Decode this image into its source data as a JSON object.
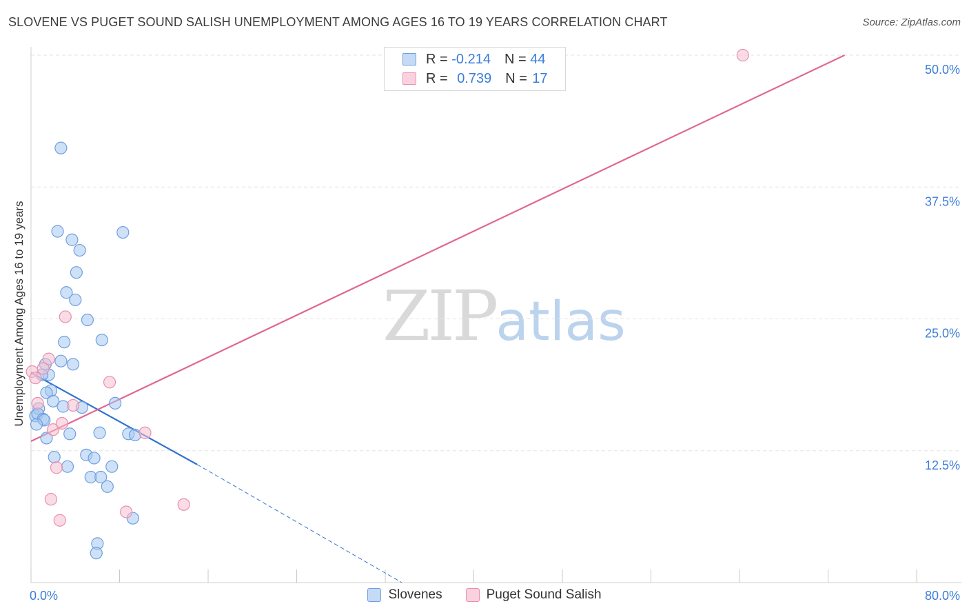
{
  "title": "SLOVENE VS PUGET SOUND SALISH UNEMPLOYMENT AMONG AGES 16 TO 19 YEARS CORRELATION CHART",
  "source": "Source: ZipAtlas.com",
  "watermark": {
    "zip": "ZIP",
    "atlas": "atlas"
  },
  "legend": {
    "r_label": "R =",
    "n_label": "N =",
    "rows": [
      {
        "name": "Slovenes",
        "r": "-0.214",
        "n": "44"
      },
      {
        "name": "Puget Sound Salish",
        "r": "0.739",
        "n": "17"
      }
    ]
  },
  "colors": {
    "slovenes_fill": "#a8c8f0",
    "slovenes_stroke": "#6d9fe0",
    "slovenes_line": "#2f72d0",
    "salish_fill": "#f6bfd0",
    "salish_stroke": "#e890ad",
    "salish_line": "#e0688f",
    "axis_label": "#3b7dd8",
    "grid": "#e3e3e3"
  },
  "chart_data": {
    "type": "scatter",
    "title": "SLOVENE VS PUGET SOUND SALISH UNEMPLOYMENT AMONG AGES 16 TO 19 YEARS CORRELATION CHART",
    "xlabel": "",
    "ylabel": "Unemployment Among Ages 16 to 19 years",
    "xlim": [
      0,
      80
    ],
    "ylim": [
      0,
      50
    ],
    "x_tick_labels": [
      {
        "value": 0,
        "label": "0.0%"
      },
      {
        "value": 80,
        "label": "80.0%"
      }
    ],
    "y_tick_labels": [
      {
        "value": 12.5,
        "label": "12.5%"
      },
      {
        "value": 25,
        "label": "25.0%"
      },
      {
        "value": 37.5,
        "label": "37.5%"
      },
      {
        "value": 50,
        "label": "50.0%"
      }
    ],
    "grid": true,
    "series": [
      {
        "name": "Slovenes",
        "x": [
          2.7,
          2.4,
          3.7,
          8.3,
          4.4,
          4.1,
          3.2,
          4.0,
          5.1,
          6.4,
          3.0,
          2.7,
          1.3,
          3.8,
          1.6,
          1.0,
          0.4,
          1.8,
          1.4,
          2.0,
          0.7,
          0.6,
          1.1,
          1.2,
          0.5,
          4.6,
          7.6,
          1.4,
          8.8,
          2.9,
          3.5,
          6.2,
          9.4,
          5.0,
          2.1,
          3.3,
          5.7,
          7.3,
          5.4,
          6.3,
          6.9,
          9.2,
          6.0,
          5.9
        ],
        "y": [
          41.2,
          33.3,
          32.5,
          33.2,
          31.5,
          29.4,
          27.5,
          26.8,
          24.9,
          23.0,
          22.8,
          21.0,
          20.7,
          20.7,
          19.7,
          19.7,
          15.8,
          18.2,
          18.0,
          17.2,
          16.5,
          16.0,
          15.5,
          15.4,
          15.0,
          16.6,
          17.0,
          13.7,
          14.1,
          16.7,
          14.1,
          14.2,
          14.0,
          12.1,
          11.9,
          11.0,
          11.8,
          11.0,
          10.0,
          10.0,
          9.1,
          6.1,
          3.7,
          2.8
        ]
      },
      {
        "name": "Puget Sound Salish",
        "x": [
          64.3,
          3.1,
          0.1,
          1.6,
          0.4,
          1.1,
          0.6,
          7.1,
          3.8,
          2.0,
          2.3,
          10.3,
          1.8,
          2.8,
          13.8,
          8.6,
          2.6
        ],
        "y": [
          50.0,
          25.2,
          20.0,
          21.2,
          19.4,
          20.3,
          17.0,
          19.0,
          16.8,
          14.5,
          10.9,
          14.2,
          7.9,
          15.1,
          7.4,
          6.7,
          5.9
        ]
      }
    ],
    "trendlines": [
      {
        "series": "Slovenes",
        "solid": {
          "x": [
            0,
            15
          ],
          "y": [
            19.9,
            11.2
          ]
        },
        "dashed": {
          "x": [
            15,
            33.5
          ],
          "y": [
            11.2,
            0.0
          ]
        }
      },
      {
        "series": "Puget Sound Salish",
        "solid": {
          "x": [
            0,
            73.5
          ],
          "y": [
            13.4,
            50.0
          ]
        }
      }
    ]
  }
}
